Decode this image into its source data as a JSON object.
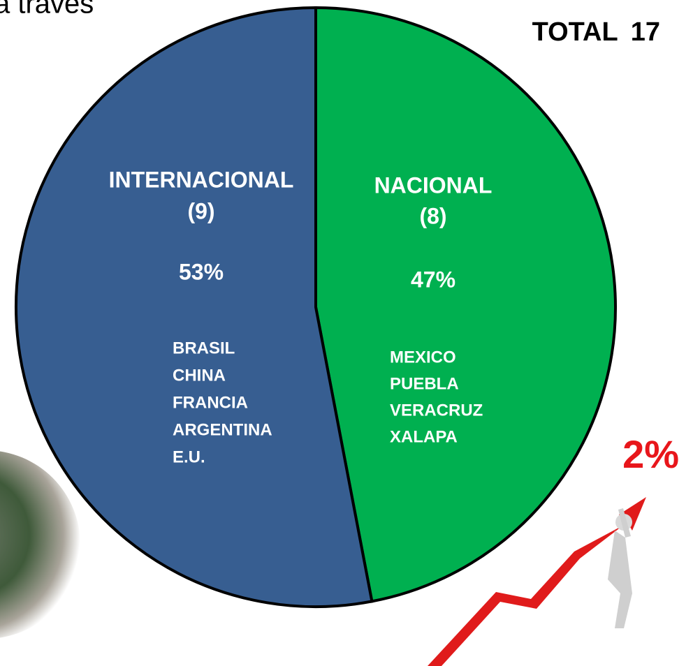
{
  "chart_data": {
    "type": "pie",
    "caption": "a través",
    "total_label": "TOTAL",
    "total": 17,
    "annotation": "2%",
    "categories": [
      "NACIONAL",
      "INTERNACIONAL"
    ],
    "values": [
      47,
      53
    ],
    "value_labels": [
      "47%",
      "53%"
    ],
    "counts": [
      8,
      9
    ],
    "count_labels": [
      "(8)",
      "(9)"
    ],
    "colors": [
      "#00b050",
      "#375e91"
    ],
    "items": [
      [
        "MEXICO",
        "PUEBLA",
        "VERACRUZ",
        "XALAPA"
      ],
      [
        "BRASIL",
        "CHINA",
        "FRANCIA",
        "ARGENTINA",
        "E.U."
      ]
    ]
  }
}
